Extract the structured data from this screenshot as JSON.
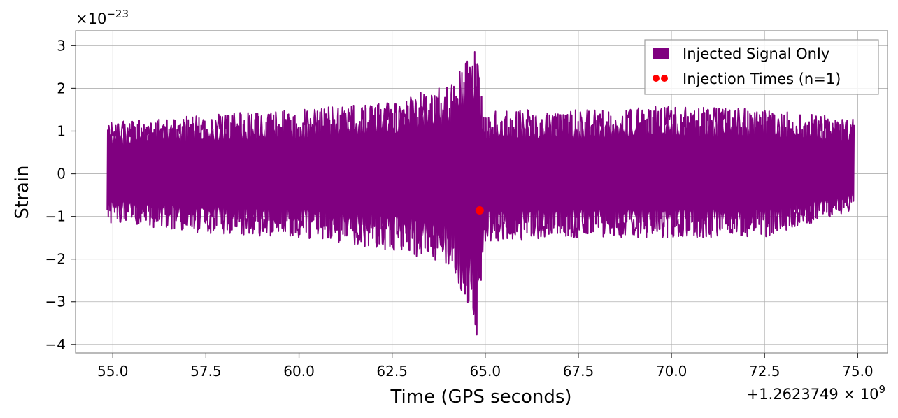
{
  "chart_data": {
    "type": "line",
    "xlabel": "Time (GPS seconds)",
    "ylabel": "Strain",
    "x_offset_text": "+1.2623749 × 10",
    "x_offset_exp": "9",
    "y_multiplier_text": "×10",
    "y_multiplier_exp": "−23",
    "xlim": [
      54.0,
      75.8
    ],
    "ylim": [
      -4.2,
      3.35
    ],
    "x_ticks": [
      55.0,
      57.5,
      60.0,
      62.5,
      65.0,
      67.5,
      70.0,
      72.5,
      75.0
    ],
    "x_tick_labels": [
      "55.0",
      "57.5",
      "60.0",
      "62.5",
      "65.0",
      "67.5",
      "70.0",
      "72.5",
      "75.0"
    ],
    "y_ticks": [
      3,
      2,
      1,
      0,
      -1,
      -2,
      -3,
      -4
    ],
    "y_tick_labels": [
      "3",
      "2",
      "1",
      "0",
      "−1",
      "−2",
      "−3",
      "−4"
    ],
    "grid": true,
    "legend_position": "top-right",
    "series": [
      {
        "name": "Injected Signal Only",
        "kind": "line",
        "color": "#800080",
        "x_range": [
          54.85,
          74.9
        ],
        "envelope": [
          {
            "x": 54.85,
            "max": 1.2,
            "min": -1.15
          },
          {
            "x": 57.5,
            "max": 1.4,
            "min": -1.4
          },
          {
            "x": 60.0,
            "max": 1.5,
            "min": -1.5
          },
          {
            "x": 62.5,
            "max": 1.7,
            "min": -1.8
          },
          {
            "x": 64.0,
            "max": 2.1,
            "min": -2.1
          },
          {
            "x": 64.8,
            "max": 3.03,
            "min": -3.85
          },
          {
            "x": 64.95,
            "max": 1.5,
            "min": -1.6
          },
          {
            "x": 67.5,
            "max": 1.5,
            "min": -1.5
          },
          {
            "x": 70.0,
            "max": 1.6,
            "min": -1.5
          },
          {
            "x": 72.5,
            "max": 1.5,
            "min": -1.5
          },
          {
            "x": 74.9,
            "max": 1.3,
            "min": -0.85
          }
        ]
      },
      {
        "name": "Injection Times (n=1)",
        "kind": "scatter",
        "color": "#ff0000",
        "points": [
          {
            "x": 64.85,
            "y": -0.86
          }
        ]
      }
    ]
  }
}
